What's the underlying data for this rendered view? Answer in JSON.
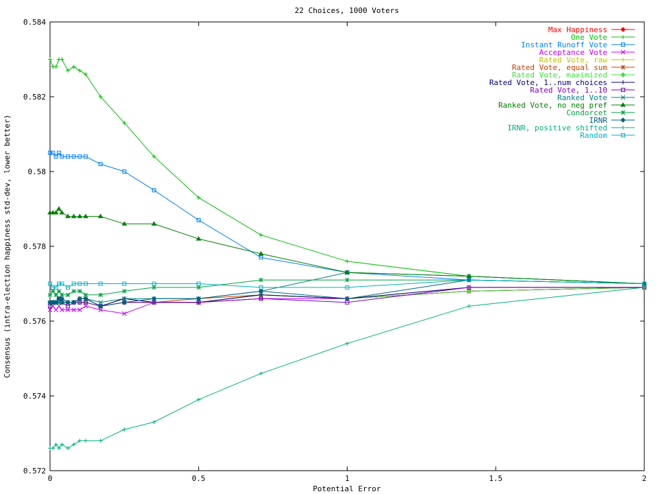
{
  "chart_data": {
    "type": "line",
    "title": "22 Choices, 1000 Voters",
    "xlabel": "Potential Error",
    "ylabel": "Consensus (intra-election happiness std-dev, lower better)",
    "xlim": [
      0,
      2
    ],
    "ylim": [
      0.572,
      0.584
    ],
    "xticks": [
      0,
      0.5,
      1,
      1.5,
      2
    ],
    "xtick_labels": [
      "0",
      "0.5",
      "1",
      "1.5",
      "2"
    ],
    "yticks": [
      0.572,
      0.574,
      0.576,
      0.578,
      0.58,
      0.582,
      0.584
    ],
    "ytick_labels": [
      "0.572",
      "0.574",
      "0.576",
      "0.578",
      "0.58",
      "0.582",
      "0.584"
    ],
    "grid": false,
    "legend_position": "top-right",
    "x": [
      0,
      0.01,
      0.02,
      0.03,
      0.04,
      0.06,
      0.08,
      0.1,
      0.12,
      0.17,
      0.25,
      0.35,
      0.5,
      0.71,
      1,
      1.41,
      2
    ],
    "series": [
      {
        "name": "Max Happiness",
        "color": "#ff0000",
        "marker": "diamond",
        "values": [
          0.5765,
          0.5765,
          0.5765,
          0.5766,
          0.5765,
          0.5765,
          0.5765,
          0.5765,
          0.5765,
          0.5764,
          0.5765,
          0.5765,
          0.5765,
          0.5767,
          0.5766,
          0.5768,
          0.5769
        ]
      },
      {
        "name": "One Vote",
        "color": "#00c000",
        "marker": "plus",
        "values": [
          0.583,
          0.5828,
          0.5828,
          0.583,
          0.583,
          0.5827,
          0.5828,
          0.5827,
          0.5826,
          0.582,
          0.5813,
          0.5804,
          0.5793,
          0.5783,
          0.5776,
          0.5772,
          0.577
        ]
      },
      {
        "name": "Instant Runoff Vote",
        "color": "#0080ff",
        "marker": "square",
        "values": [
          0.5805,
          0.5805,
          0.5804,
          0.5805,
          0.5804,
          0.5804,
          0.5804,
          0.5804,
          0.5804,
          0.5802,
          0.58,
          0.5795,
          0.5787,
          0.5777,
          0.5773,
          0.5771,
          0.577
        ]
      },
      {
        "name": "Acceptance Vote",
        "color": "#c000ff",
        "marker": "x",
        "values": [
          0.5763,
          0.5764,
          0.5763,
          0.5764,
          0.5763,
          0.5763,
          0.5763,
          0.5763,
          0.5764,
          0.5763,
          0.5762,
          0.5765,
          0.5765,
          0.5766,
          0.5766,
          0.5768,
          0.5769
        ]
      },
      {
        "name": "Rated Vote, raw",
        "color": "#c0c000",
        "marker": "plus",
        "values": [
          0.5765,
          0.5765,
          0.5765,
          0.5765,
          0.5765,
          0.5765,
          0.5765,
          0.5765,
          0.5765,
          0.5764,
          0.5765,
          0.5765,
          0.5765,
          0.5767,
          0.5766,
          0.5769,
          0.5769
        ]
      },
      {
        "name": "Rated Vote, equal sum",
        "color": "#c04000",
        "marker": "star",
        "values": [
          0.5765,
          0.5765,
          0.5765,
          0.5766,
          0.5765,
          0.5765,
          0.5765,
          0.5766,
          0.5766,
          0.5764,
          0.5766,
          0.5765,
          0.5766,
          0.5767,
          0.5766,
          0.5768,
          0.5769
        ]
      },
      {
        "name": "Rated Vote, maximized",
        "color": "#40e040",
        "marker": "diamond",
        "values": [
          0.5765,
          0.5765,
          0.5765,
          0.5765,
          0.5765,
          0.5765,
          0.5765,
          0.5765,
          0.5765,
          0.5764,
          0.5765,
          0.5765,
          0.5765,
          0.5767,
          0.5766,
          0.5768,
          0.5769
        ]
      },
      {
        "name": "Rated Vote, 1..num choices",
        "color": "#000080",
        "marker": "plus",
        "values": [
          0.5765,
          0.5765,
          0.5765,
          0.5766,
          0.5765,
          0.5765,
          0.5765,
          0.5766,
          0.5766,
          0.5764,
          0.5766,
          0.5765,
          0.5765,
          0.5767,
          0.5766,
          0.5769,
          0.5769
        ]
      },
      {
        "name": "Rated Vote, 1..10",
        "color": "#8000c0",
        "marker": "square",
        "values": [
          0.5764,
          0.5765,
          0.5765,
          0.5766,
          0.5765,
          0.5764,
          0.5765,
          0.5765,
          0.5765,
          0.5764,
          0.5765,
          0.5765,
          0.5765,
          0.5766,
          0.5765,
          0.5769,
          0.5769
        ]
      },
      {
        "name": "Ranked Vote",
        "color": "#008080",
        "marker": "x",
        "values": [
          0.5765,
          0.5765,
          0.5765,
          0.5765,
          0.5765,
          0.5765,
          0.5765,
          0.5766,
          0.5766,
          0.5765,
          0.5766,
          0.5766,
          0.5766,
          0.5768,
          0.5773,
          0.5772,
          0.577
        ]
      },
      {
        "name": "Ranked Vote, no neg pref",
        "color": "#008000",
        "marker": "triangle",
        "values": [
          0.5789,
          0.5789,
          0.5789,
          0.579,
          0.5789,
          0.5788,
          0.5788,
          0.5788,
          0.5788,
          0.5788,
          0.5786,
          0.5786,
          0.5782,
          0.5778,
          0.5773,
          0.5772,
          0.577
        ]
      },
      {
        "name": "Condorcet",
        "color": "#00a040",
        "marker": "star",
        "values": [
          0.5767,
          0.5768,
          0.5767,
          0.5768,
          0.5767,
          0.5767,
          0.5768,
          0.5768,
          0.5767,
          0.5767,
          0.5768,
          0.5769,
          0.5769,
          0.5771,
          0.5771,
          0.5771,
          0.577
        ]
      },
      {
        "name": "IRNR",
        "color": "#006080",
        "marker": "diamond",
        "values": [
          0.5765,
          0.5765,
          0.5765,
          0.5766,
          0.5766,
          0.5765,
          0.5765,
          0.5766,
          0.5766,
          0.5764,
          0.5765,
          0.5766,
          0.5766,
          0.5768,
          0.5766,
          0.5771,
          0.577
        ]
      },
      {
        "name": "IRNR, positive shifted",
        "color": "#00b080",
        "marker": "plus",
        "values": [
          0.5726,
          0.5726,
          0.5727,
          0.5726,
          0.5727,
          0.5726,
          0.5727,
          0.5728,
          0.5728,
          0.5728,
          0.5731,
          0.5733,
          0.5739,
          0.5746,
          0.5754,
          0.5764,
          0.5769
        ]
      },
      {
        "name": "Random",
        "color": "#00b0c0",
        "marker": "square",
        "values": [
          0.577,
          0.5769,
          0.5769,
          0.577,
          0.577,
          0.5769,
          0.577,
          0.577,
          0.577,
          0.577,
          0.577,
          0.577,
          0.577,
          0.5769,
          0.5769,
          0.5771,
          0.577
        ]
      }
    ]
  }
}
